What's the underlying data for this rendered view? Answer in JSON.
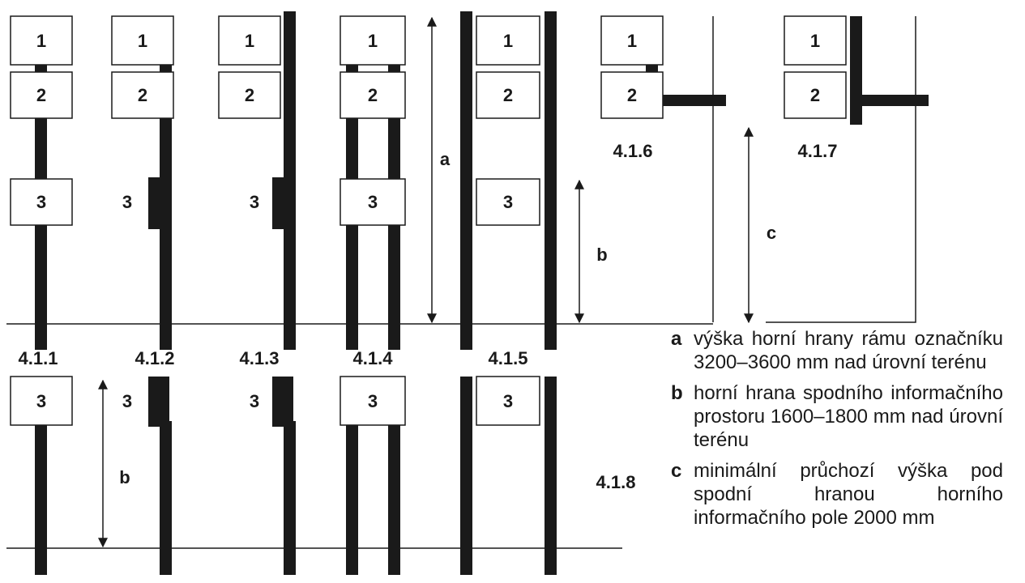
{
  "box_labels": {
    "one": "1",
    "two": "2",
    "three": "3"
  },
  "dimension_labels": {
    "a": "a",
    "b": "b",
    "c": "c"
  },
  "figure_labels": {
    "f411": "4.1.1",
    "f412": "4.1.2",
    "f413": "4.1.3",
    "f414": "4.1.4",
    "f415": "4.1.5",
    "f416": "4.1.6",
    "f417": "4.1.7",
    "f418": "4.1.8"
  },
  "legend": [
    {
      "key": "a",
      "text": "výška horní hrany rámu označníku 3200–3600 mm nad úrovní terénu"
    },
    {
      "key": "b",
      "text": "horní hrana spodního informačního prostoru 1600–1800 mm nad úrovní terénu"
    },
    {
      "key": "c",
      "text": "minimální průchozí výška pod spodní hranou horního informačního pole 2000 mm"
    }
  ],
  "colors": {
    "ink": "#1a1a1a",
    "background": "#ffffff"
  }
}
